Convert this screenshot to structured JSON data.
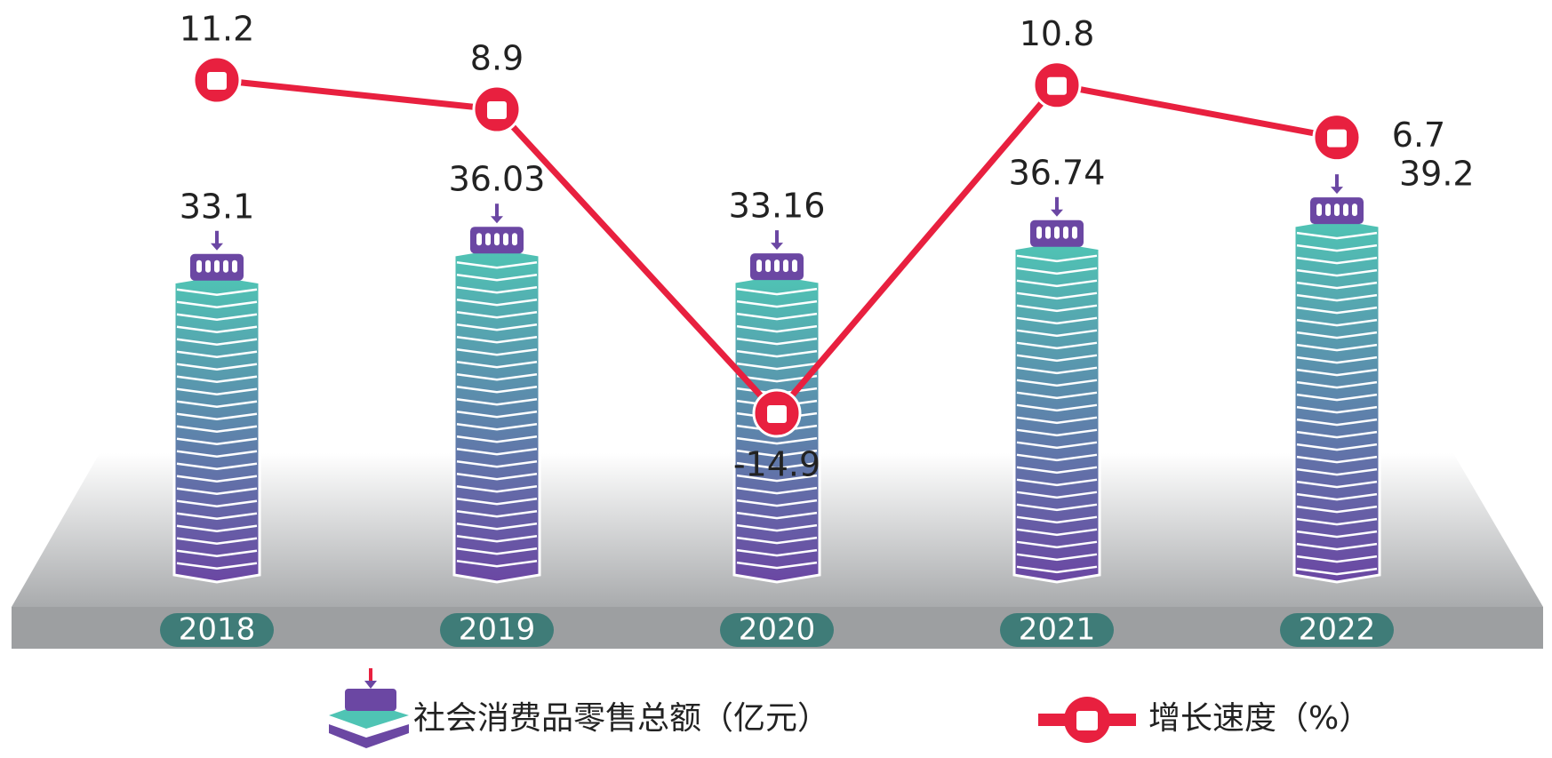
{
  "chart_data": {
    "type": "bar-line",
    "categories": [
      "2018",
      "2019",
      "2020",
      "2021",
      "2022"
    ],
    "series": [
      {
        "name": "社会消费品零售总额（亿元）",
        "type": "bar",
        "color": "#4fc4b4",
        "color2": "#6b47a3",
        "values": [
          33.1,
          36.03,
          33.16,
          36.74,
          39.2
        ]
      },
      {
        "name": "增长速度（%）",
        "type": "line",
        "color": "#e8203f",
        "values": [
          11.2,
          8.9,
          -14.9,
          10.8,
          6.7
        ]
      }
    ]
  }
}
